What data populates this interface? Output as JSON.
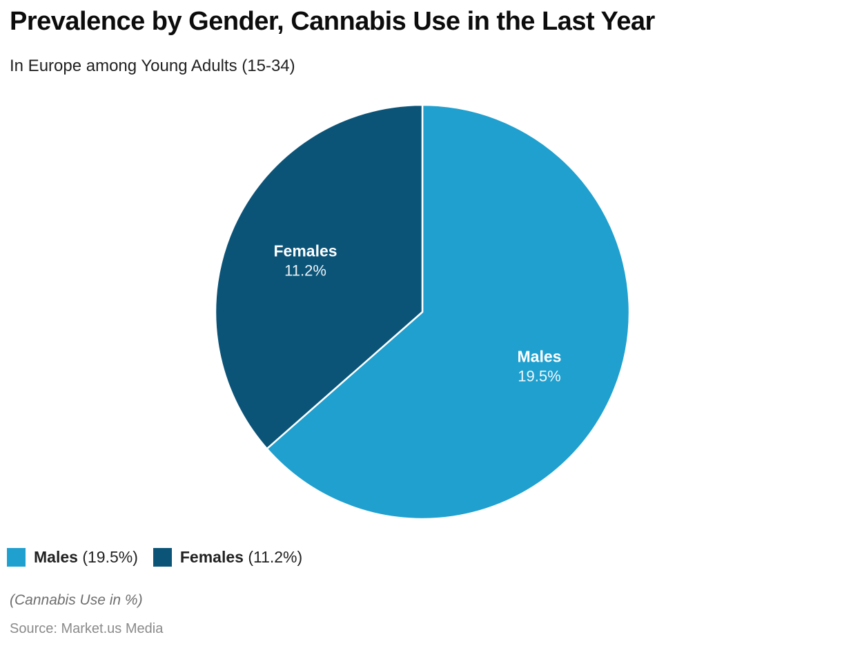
{
  "chart_data": {
    "type": "pie",
    "title": "Prevalence by Gender, Cannabis Use in the Last Year",
    "subtitle": "In Europe among Young Adults (15-34)",
    "unit": "%",
    "start_angle_deg": -90,
    "direction": "clockwise",
    "legend_position": "bottom-left",
    "slices": [
      {
        "label": "Males",
        "value": 19.5,
        "color": "#1FA0CF"
      },
      {
        "label": "Females",
        "value": 11.2,
        "color": "#0B5478"
      }
    ],
    "slice_label_color": "#ffffff",
    "slice_separator_color": "#ffffff"
  },
  "footer": {
    "note": "(Cannabis Use in %)",
    "source": "Source: Market.us Media"
  }
}
